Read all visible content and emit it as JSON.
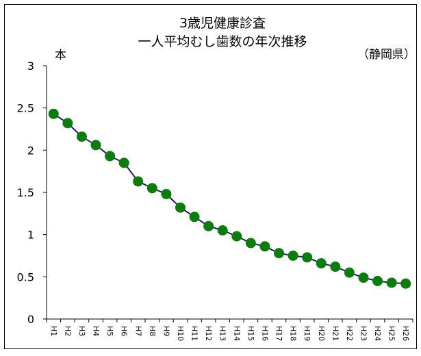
{
  "chart_data": {
    "type": "line",
    "title": [
      "3歳児健康診査",
      "一人平均むし歯数の年次推移"
    ],
    "subtitle": "（静岡県）",
    "ylabel": "本",
    "xlabel": "",
    "ylim": [
      0,
      3
    ],
    "yticks": [
      "0",
      "0.5",
      "1",
      "1.5",
      "2",
      "2.5",
      "3"
    ],
    "grid": false,
    "legend": "none",
    "categories": [
      "H1",
      "H2",
      "H3",
      "H4",
      "H5",
      "H6",
      "H7",
      "H8",
      "H9",
      "H10",
      "H11",
      "H12",
      "H13",
      "H14",
      "H15",
      "H16",
      "H17",
      "H18",
      "H19",
      "H20",
      "H21",
      "H22",
      "H23",
      "H24",
      "H25",
      "H26"
    ],
    "series": [
      {
        "values": [
          2.43,
          2.32,
          2.16,
          2.06,
          1.93,
          1.85,
          1.63,
          1.55,
          1.48,
          1.32,
          1.21,
          1.1,
          1.05,
          0.98,
          0.9,
          0.86,
          0.78,
          0.75,
          0.73,
          0.66,
          0.62,
          0.55,
          0.49,
          0.45,
          0.43,
          0.42
        ],
        "line_color": "#1a1a6e",
        "marker_color": "#0a7d0a"
      }
    ]
  }
}
